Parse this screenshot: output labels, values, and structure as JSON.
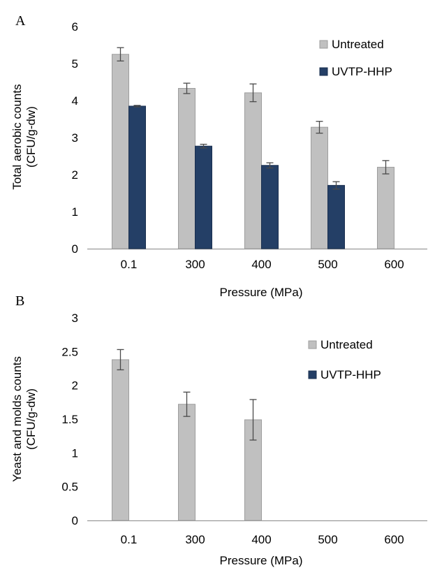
{
  "chart_data": [
    {
      "panel_label": "A",
      "type": "bar",
      "categories": [
        "0.1",
        "300",
        "400",
        "500",
        "600"
      ],
      "xlabel": "Pressure (MPa)",
      "ylabel_lines": [
        "Total aerobic counts",
        "(CFU/g-dw)"
      ],
      "ylim": [
        0,
        6
      ],
      "yticks": [
        "0",
        "1",
        "2",
        "3",
        "4",
        "5",
        "6"
      ],
      "legend_position": "top-right",
      "series": [
        {
          "name": "Untreated",
          "color": "#c0c0c0",
          "values": [
            5.25,
            4.33,
            4.21,
            3.28,
            2.2
          ],
          "errors": [
            0.18,
            0.14,
            0.24,
            0.16,
            0.18
          ]
        },
        {
          "name": "UVTP-HHP",
          "color": "#243f66",
          "values": [
            3.85,
            2.77,
            2.25,
            1.71,
            null
          ],
          "errors": [
            0.02,
            0.05,
            0.07,
            0.1,
            null
          ]
        }
      ]
    },
    {
      "panel_label": "B",
      "type": "bar",
      "categories": [
        "0.1",
        "300",
        "400",
        "500",
        "600"
      ],
      "xlabel": "Pressure (MPa)",
      "ylabel_lines": [
        "Yeast and molds counts",
        "(CFU/g-dw)"
      ],
      "ylim": [
        0,
        3
      ],
      "yticks": [
        "0",
        "0.5",
        "1",
        "1.5",
        "2",
        "2.5",
        "3"
      ],
      "legend_position": "top-right",
      "series": [
        {
          "name": "Untreated",
          "color": "#c0c0c0",
          "values": [
            2.38,
            1.72,
            1.49,
            null,
            null
          ],
          "errors": [
            0.15,
            0.18,
            0.3,
            null,
            null
          ]
        },
        {
          "name": "UVTP-HHP",
          "color": "#243f66",
          "values": [
            null,
            null,
            null,
            null,
            null
          ],
          "errors": [
            null,
            null,
            null,
            null,
            null
          ]
        }
      ]
    }
  ]
}
